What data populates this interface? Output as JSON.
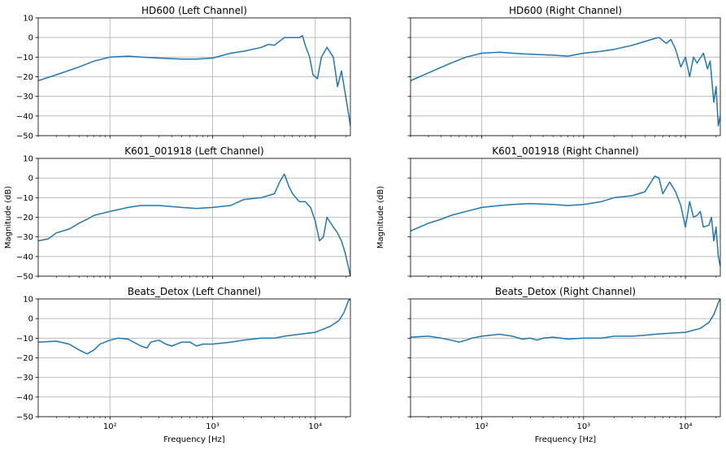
{
  "chart_data": [
    {
      "type": "line",
      "title": "HD600 (Left Channel)",
      "xlabel": "",
      "ylabel": "",
      "xscale": "log",
      "xlim": [
        20,
        22000
      ],
      "ylim": [
        -50,
        10
      ],
      "yticks": [
        "10",
        "0",
        "−10",
        "−20",
        "−30",
        "−40",
        "−50"
      ],
      "xticks": [],
      "grid": true,
      "color": "#1f77b4",
      "series": [
        {
          "x": [
            20,
            30,
            50,
            70,
            100,
            150,
            200,
            300,
            500,
            700,
            1000,
            1500,
            2000,
            3000,
            3500,
            4000,
            5000,
            7000,
            7500,
            8000,
            8800,
            9500,
            10500,
            11500,
            13000,
            15000,
            16500,
            18000,
            19500,
            21000,
            22000
          ],
          "y": [
            -22,
            -19,
            -15,
            -12,
            -10,
            -9.5,
            -10,
            -10.5,
            -11,
            -11,
            -10.5,
            -8,
            -7,
            -5,
            -3.5,
            -4,
            0,
            0,
            1,
            -4,
            -10,
            -19,
            -21,
            -10,
            -5,
            -10,
            -25,
            -17,
            -28,
            -38,
            -45
          ]
        }
      ]
    },
    {
      "type": "line",
      "title": "HD600 (Right Channel)",
      "xlabel": "",
      "ylabel": "",
      "xscale": "log",
      "xlim": [
        20,
        22000
      ],
      "ylim": [
        -50,
        10
      ],
      "yticks": [],
      "xticks": [],
      "grid": true,
      "color": "#1f77b4",
      "series": [
        {
          "x": [
            20,
            30,
            50,
            70,
            100,
            150,
            200,
            300,
            500,
            700,
            1000,
            1500,
            2000,
            3000,
            4000,
            5000,
            5500,
            6500,
            7200,
            8000,
            9000,
            10000,
            11000,
            12000,
            13000,
            15000,
            16500,
            17500,
            19000,
            20000,
            21000,
            22000
          ],
          "y": [
            -22,
            -18,
            -13,
            -10,
            -8,
            -7.5,
            -8,
            -8.5,
            -9,
            -9.5,
            -8,
            -7,
            -6,
            -4,
            -2,
            -0.5,
            0,
            -3,
            -1,
            -6,
            -15,
            -10,
            -20,
            -10,
            -13,
            -8,
            -16,
            -12,
            -33,
            -25,
            -45,
            -40
          ]
        }
      ]
    },
    {
      "type": "line",
      "title": "K601_001918 (Left Channel)",
      "xlabel": "",
      "ylabel": "Magnitude (dB)",
      "xscale": "log",
      "xlim": [
        20,
        22000
      ],
      "ylim": [
        -50,
        10
      ],
      "yticks": [
        "10",
        "0",
        "−10",
        "−20",
        "−30",
        "−40",
        "−50"
      ],
      "xticks": [],
      "grid": true,
      "color": "#1f77b4",
      "series": [
        {
          "x": [
            20,
            25,
            30,
            40,
            50,
            60,
            70,
            100,
            150,
            200,
            300,
            500,
            700,
            1000,
            1500,
            2000,
            3000,
            4000,
            4500,
            5000,
            5500,
            6000,
            7000,
            8000,
            9000,
            10000,
            11000,
            12000,
            13000,
            15000,
            16500,
            18000,
            19500,
            21000,
            22000
          ],
          "y": [
            -32,
            -31,
            -28,
            -26,
            -23,
            -21,
            -19,
            -17,
            -15,
            -14,
            -14,
            -15,
            -15.5,
            -15,
            -14,
            -11,
            -10,
            -8,
            -2,
            2,
            -4,
            -8,
            -12,
            -12,
            -15,
            -22,
            -32,
            -30,
            -20,
            -25,
            -28,
            -32,
            -38,
            -45,
            -50
          ]
        }
      ]
    },
    {
      "type": "line",
      "title": "K601_001918 (Right Channel)",
      "xlabel": "",
      "ylabel": "Magnitude (dB)",
      "xscale": "log",
      "xlim": [
        20,
        22000
      ],
      "ylim": [
        -50,
        10
      ],
      "yticks": [],
      "xticks": [],
      "grid": true,
      "color": "#1f77b4",
      "series": [
        {
          "x": [
            20,
            30,
            40,
            50,
            70,
            100,
            150,
            200,
            300,
            500,
            700,
            1000,
            1500,
            2000,
            3000,
            4000,
            5000,
            5500,
            6000,
            7000,
            8000,
            9000,
            10000,
            11000,
            12000,
            13000,
            14000,
            15000,
            17000,
            18000,
            19000,
            20000,
            21000,
            22000
          ],
          "y": [
            -27,
            -23,
            -21,
            -19,
            -17,
            -15,
            -14,
            -13.5,
            -13,
            -13.5,
            -14,
            -13.5,
            -12,
            -10,
            -9,
            -7,
            1,
            0,
            -8,
            -2,
            -7,
            -14,
            -25,
            -12,
            -20,
            -19,
            -17,
            -25,
            -24,
            -20,
            -32,
            -25,
            -40,
            -45
          ]
        }
      ]
    },
    {
      "type": "line",
      "title": "Beats_Detox (Left Channel)",
      "xlabel": "Frequency [Hz]",
      "ylabel": "",
      "xscale": "log",
      "xlim": [
        20,
        22000
      ],
      "ylim": [
        -50,
        10
      ],
      "yticks": [
        "10",
        "0",
        "−10",
        "−20",
        "−30",
        "−40",
        "−50"
      ],
      "xticks": [
        "10²",
        "10³",
        "10⁴"
      ],
      "grid": true,
      "color": "#1f77b4",
      "series": [
        {
          "x": [
            20,
            30,
            40,
            50,
            60,
            70,
            80,
            100,
            120,
            150,
            200,
            230,
            250,
            300,
            350,
            400,
            500,
            600,
            700,
            800,
            1000,
            1500,
            2000,
            3000,
            4000,
            5000,
            7000,
            10000,
            14000,
            17000,
            19000,
            20000,
            21000,
            22000
          ],
          "y": [
            -12,
            -11.5,
            -13,
            -16,
            -18,
            -16,
            -13,
            -11,
            -10,
            -10.5,
            -14,
            -15,
            -12,
            -11,
            -13,
            -14,
            -12,
            -12,
            -14,
            -13,
            -13,
            -12,
            -11,
            -10,
            -10,
            -9,
            -8,
            -7,
            -4,
            -1,
            3,
            6,
            9,
            10
          ]
        }
      ]
    },
    {
      "type": "line",
      "title": "Beats_Detox (Right Channel)",
      "xlabel": "Frequency [Hz]",
      "ylabel": "",
      "xscale": "log",
      "xlim": [
        20,
        22000
      ],
      "ylim": [
        -50,
        10
      ],
      "yticks": [],
      "xticks": [
        "10²",
        "10³",
        "10⁴"
      ],
      "grid": true,
      "color": "#1f77b4",
      "series": [
        {
          "x": [
            20,
            30,
            40,
            50,
            60,
            70,
            80,
            100,
            120,
            150,
            200,
            250,
            300,
            350,
            400,
            500,
            600,
            700,
            1000,
            1500,
            2000,
            3000,
            4000,
            5000,
            7000,
            10000,
            14000,
            17000,
            19000,
            20000,
            21000,
            22000
          ],
          "y": [
            -9.5,
            -9,
            -10,
            -11,
            -12,
            -11,
            -10,
            -9,
            -8.5,
            -8,
            -9,
            -10.5,
            -10,
            -11,
            -10,
            -9.5,
            -10,
            -10.5,
            -10,
            -10,
            -9,
            -9,
            -8.5,
            -8,
            -7.5,
            -7,
            -5,
            -2,
            2,
            5,
            8,
            10
          ]
        }
      ]
    }
  ]
}
